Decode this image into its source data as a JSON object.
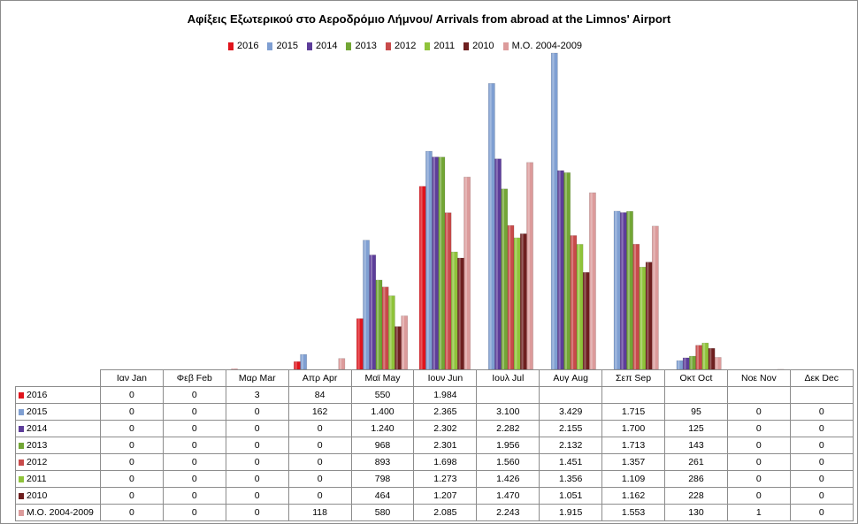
{
  "chart_data": {
    "type": "bar",
    "title": "Αφίξεις Εξωτερικού στο Αεροδρόμιο Λήμνου/ Arrivals from abroad at the Limnos' Airport",
    "categories": [
      "Ιαν  Jan",
      "Φεβ  Feb",
      "Μαρ  Mar",
      "Απρ  Apr",
      "Μαϊ  May",
      "Ιουν  Jun",
      "Ιουλ  Jul",
      "Αυγ  Aug",
      "Σεπ  Sep",
      "Οκτ  Oct",
      "Νοε  Nov",
      "Δεκ  Dec"
    ],
    "ylim": [
      0,
      3429
    ],
    "grid": false,
    "legend_position": "top",
    "series": [
      {
        "name": "2016",
        "color": "#e0141c",
        "values": [
          0,
          0,
          3,
          84,
          550,
          1984,
          null,
          null,
          null,
          null,
          null,
          null
        ],
        "labels": [
          "0",
          "0",
          "3",
          "84",
          "550",
          "1.984",
          "",
          "",
          "",
          "",
          "",
          ""
        ]
      },
      {
        "name": "2015",
        "color": "#7f9fd2",
        "values": [
          0,
          0,
          0,
          162,
          1400,
          2365,
          3100,
          3429,
          1715,
          95,
          0,
          0
        ],
        "labels": [
          "0",
          "0",
          "0",
          "162",
          "1.400",
          "2.365",
          "3.100",
          "3.429",
          "1.715",
          "95",
          "0",
          "0"
        ]
      },
      {
        "name": "2014",
        "color": "#5d3d9a",
        "values": [
          0,
          0,
          0,
          0,
          1240,
          2302,
          2282,
          2155,
          1700,
          125,
          0,
          0
        ],
        "labels": [
          "0",
          "0",
          "0",
          "0",
          "1.240",
          "2.302",
          "2.282",
          "2.155",
          "1.700",
          "125",
          "0",
          "0"
        ]
      },
      {
        "name": "2013",
        "color": "#72a635",
        "values": [
          0,
          0,
          0,
          0,
          968,
          2301,
          1956,
          2132,
          1713,
          143,
          0,
          0
        ],
        "labels": [
          "0",
          "0",
          "0",
          "0",
          "968",
          "2.301",
          "1.956",
          "2.132",
          "1.713",
          "143",
          "0",
          "0"
        ]
      },
      {
        "name": "2012",
        "color": "#c84a4a",
        "values": [
          0,
          0,
          0,
          0,
          893,
          1698,
          1560,
          1451,
          1357,
          261,
          0,
          0
        ],
        "labels": [
          "0",
          "0",
          "0",
          "0",
          "893",
          "1.698",
          "1.560",
          "1.451",
          "1.357",
          "261",
          "0",
          "0"
        ]
      },
      {
        "name": "2011",
        "color": "#8fc33a",
        "values": [
          0,
          0,
          0,
          0,
          798,
          1273,
          1426,
          1356,
          1109,
          286,
          0,
          0
        ],
        "labels": [
          "0",
          "0",
          "0",
          "0",
          "798",
          "1.273",
          "1.426",
          "1.356",
          "1.109",
          "286",
          "0",
          "0"
        ]
      },
      {
        "name": "2010",
        "color": "#6e1f1f",
        "values": [
          0,
          0,
          0,
          0,
          464,
          1207,
          1470,
          1051,
          1162,
          228,
          0,
          0
        ],
        "labels": [
          "0",
          "0",
          "0",
          "0",
          "464",
          "1.207",
          "1.470",
          "1.051",
          "1.162",
          "228",
          "0",
          "0"
        ]
      },
      {
        "name": "Μ.Ο. 2004-2009",
        "color": "#dc9b9b",
        "values": [
          0,
          0,
          0,
          118,
          580,
          2085,
          2243,
          1915,
          1553,
          130,
          1,
          0
        ],
        "labels": [
          "0",
          "0",
          "0",
          "118",
          "580",
          "2.085",
          "2.243",
          "1.915",
          "1.553",
          "130",
          "1",
          "0"
        ]
      }
    ]
  }
}
